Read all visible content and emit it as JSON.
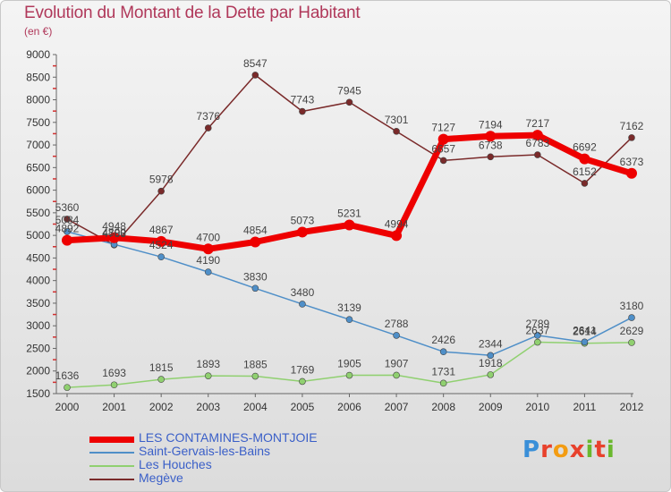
{
  "header": {
    "title": "Evolution du Montant de la Dette par Habitant",
    "subtitle": "(en €)"
  },
  "logo": {
    "text": "Proxiti"
  },
  "chart_data": {
    "type": "line",
    "title": "Evolution du Montant de la Dette par Habitant",
    "subtitle": "(en €)",
    "xlabel": "",
    "ylabel": "",
    "x": [
      2000,
      2001,
      2002,
      2003,
      2004,
      2005,
      2006,
      2007,
      2008,
      2009,
      2010,
      2011,
      2012
    ],
    "ylim": [
      1500,
      9000
    ],
    "yticks": [
      1500,
      2000,
      2500,
      3000,
      3500,
      4000,
      4500,
      5000,
      5500,
      6000,
      6500,
      7000,
      7500,
      8000,
      8500,
      9000
    ],
    "grid": false,
    "legend_position": "bottom-left",
    "series": [
      {
        "name": "LES CONTAMINES-MONTJOIE",
        "color": "#ee0000",
        "values": [
          4892,
          4948,
          4867,
          4700,
          4854,
          5073,
          5231,
          4994,
          7127,
          7194,
          7217,
          6692,
          6373
        ]
      },
      {
        "name": "Saint-Gervais-les-Bains",
        "color": "#4f8fc8",
        "values": [
          5084,
          4800,
          4524,
          4190,
          3830,
          3480,
          3139,
          2788,
          2426,
          2344,
          2789,
          2641,
          3180
        ]
      },
      {
        "name": "Les Houches",
        "color": "#90d070",
        "values": [
          1636,
          1693,
          1815,
          1893,
          1885,
          1769,
          1905,
          1907,
          1731,
          1918,
          2637,
          2614,
          2629
        ]
      },
      {
        "name": "Megève",
        "color": "#7a2a2a",
        "values": [
          5360,
          4788,
          5978,
          7376,
          8547,
          7743,
          7945,
          7301,
          6657,
          6738,
          6783,
          6152,
          7162
        ]
      }
    ]
  }
}
